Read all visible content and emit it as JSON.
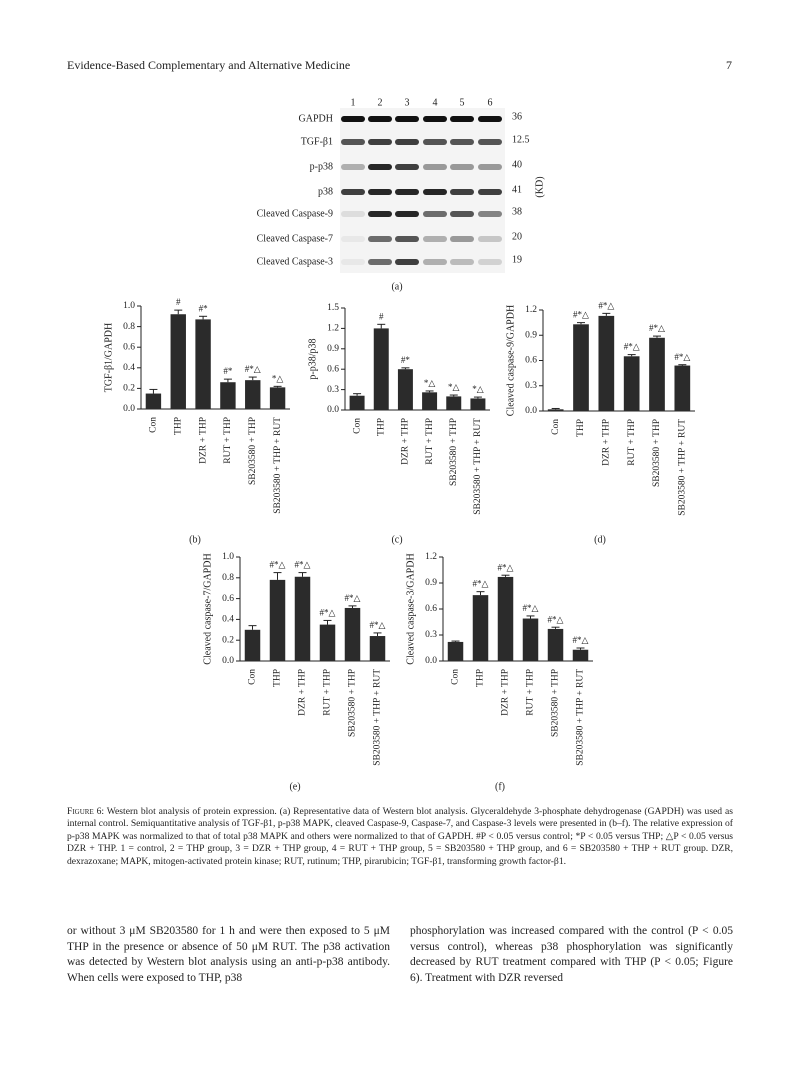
{
  "header": {
    "journal": "Evidence-Based Complementary and Alternative Medicine",
    "page": "7"
  },
  "blot": {
    "lanes": [
      "1",
      "2",
      "3",
      "4",
      "5",
      "6"
    ],
    "rows": [
      {
        "label": "GAPDH",
        "kd": "36"
      },
      {
        "label": "TGF-β1",
        "kd": "12.5"
      },
      {
        "label": "p-p38",
        "kd": "40"
      },
      {
        "label": "p38",
        "kd": "41"
      },
      {
        "label": "Cleaved Caspase-9",
        "kd": "38"
      },
      {
        "label": "Cleaved Caspase-7",
        "kd": "20"
      },
      {
        "label": "Cleaved Caspase-3",
        "kd": "19"
      }
    ],
    "unit": "(KD)",
    "panel": "(a)"
  },
  "chart_data": [
    {
      "type": "bar",
      "panel": "(b)",
      "ylabel": "TGF-β1/GAPDH",
      "categories": [
        "Con",
        "THP",
        "DZR + THP",
        "RUT + THP",
        "SB203580 + THP",
        "SB203580 + THP + RUT"
      ],
      "values": [
        0.15,
        0.92,
        0.87,
        0.26,
        0.28,
        0.21
      ],
      "errors": [
        0.04,
        0.04,
        0.03,
        0.03,
        0.03,
        0.01
      ],
      "annotations": [
        null,
        "#",
        "#*",
        "#*",
        "#*△",
        "*△"
      ],
      "color": "#2b2b2b",
      "ylim": [
        0,
        1
      ],
      "yticks": [
        {
          "value": 0,
          "label": "0.0"
        },
        0.2,
        0.4,
        0.6,
        0.8,
        {
          "value": 1,
          "label": "1.0"
        }
      ]
    },
    {
      "type": "bar",
      "panel": "(c)",
      "ylabel": "p-p38/p38",
      "categories": [
        "Con",
        "THP",
        "DZR + THP",
        "RUT + THP",
        "SB203580 + THP",
        "SB203580 + THP + RUT"
      ],
      "values": [
        0.21,
        1.2,
        0.6,
        0.26,
        0.2,
        0.17
      ],
      "errors": [
        0.03,
        0.06,
        0.02,
        0.02,
        0.02,
        0.02
      ],
      "annotations": [
        null,
        "#",
        "#*",
        "*△",
        "*△",
        "*△"
      ],
      "color": "#2b2b2b",
      "ylim": [
        0,
        1.5
      ],
      "yticks": [
        {
          "value": 0,
          "label": "0.0"
        },
        0.3,
        0.6,
        0.9,
        1.2,
        1.5
      ]
    },
    {
      "type": "bar",
      "panel": "(d)",
      "ylabel": "Cleaved caspase-9/GAPDH",
      "categories": [
        "Con",
        "THP",
        "DZR + THP",
        "RUT + THP",
        "SB203580 + THP",
        "SB203580 + THP + RUT"
      ],
      "values": [
        0.02,
        1.03,
        1.13,
        0.65,
        0.87,
        0.54
      ],
      "errors": [
        0.01,
        0.02,
        0.03,
        0.02,
        0.02,
        0.01
      ],
      "annotations": [
        null,
        "#*△",
        "#*△",
        "#*△",
        "#*△",
        "#*△"
      ],
      "color": "#2b2b2b",
      "ylim": [
        0,
        1.2
      ],
      "yticks": [
        {
          "value": 0,
          "label": "0.0"
        },
        0.3,
        0.6,
        0.9,
        1.2
      ]
    },
    {
      "type": "bar",
      "panel": "(e)",
      "ylabel": "Cleaved caspase-7/GAPDH",
      "categories": [
        "Con",
        "THP",
        "DZR + THP",
        "RUT + THP",
        "SB203580 + THP",
        "SB203580 + THP + RUT"
      ],
      "values": [
        0.3,
        0.78,
        0.81,
        0.35,
        0.51,
        0.24
      ],
      "errors": [
        0.04,
        0.07,
        0.04,
        0.04,
        0.02,
        0.03
      ],
      "annotations": [
        null,
        "#*△",
        "#*△",
        "#*△",
        "#*△",
        "#*△"
      ],
      "color": "#2b2b2b",
      "ylim": [
        0,
        1
      ],
      "yticks": [
        {
          "value": 0,
          "label": "0.0"
        },
        0.2,
        0.4,
        0.6,
        0.8,
        {
          "value": 1,
          "label": "1.0"
        }
      ]
    },
    {
      "type": "bar",
      "panel": "(f)",
      "ylabel": "Cleaved caspase-3/GAPDH",
      "categories": [
        "Con",
        "THP",
        "DZR + THP",
        "RUT + THP",
        "SB203580 + THP",
        "SB203580 + THP + RUT"
      ],
      "values": [
        0.22,
        0.76,
        0.97,
        0.49,
        0.37,
        0.13
      ],
      "errors": [
        0.01,
        0.04,
        0.02,
        0.03,
        0.02,
        0.02
      ],
      "annotations": [
        null,
        "#*△",
        "#*△",
        "#*△",
        "#*△",
        "#*△"
      ],
      "color": "#2b2b2b",
      "ylim": [
        0,
        1.2
      ],
      "yticks": [
        {
          "value": 0,
          "label": "0.0"
        },
        0.3,
        0.6,
        0.9,
        1.2
      ]
    }
  ],
  "caption": {
    "label": "Figure 6:",
    "text": "Western blot analysis of protein expression. (a) Representative data of Western blot analysis. Glyceraldehyde 3-phosphate dehydrogenase (GAPDH) was used as internal control. Semiquantitative analysis of TGF-β1, p-p38 MAPK, cleaved Caspase-9, Caspase-7, and Caspase-3 levels were presented in (b–f). The relative expression of p-p38 MAPK was normalized to that of total p38 MAPK and others were normalized to that of GAPDH. #P < 0.05 versus control; *P < 0.05 versus THP; △P < 0.05 versus DZR + THP. 1 = control, 2 = THP group, 3 = DZR + THP group, 4 = RUT + THP group, 5 = SB203580 + THP group, and 6 = SB203580 + THP + RUT group. DZR, dexrazoxane; MAPK, mitogen-activated protein kinase; RUT, rutinum; THP, pirarubicin; TGF-β1, transforming growth factor-β1."
  },
  "body": {
    "left": "or without 3 μM SB203580 for 1 h and were then exposed to 5 μM THP in the presence or absence of 50 μM RUT. The p38 activation was detected by Western blot analysis using an anti-p-p38 antibody. When cells were exposed to THP, p38",
    "right": "phosphorylation was increased compared with the control (P < 0.05 versus control), whereas p38 phosphorylation was significantly decreased by RUT treatment compared with THP (P < 0.05; Figure 6). Treatment with DZR reversed"
  }
}
